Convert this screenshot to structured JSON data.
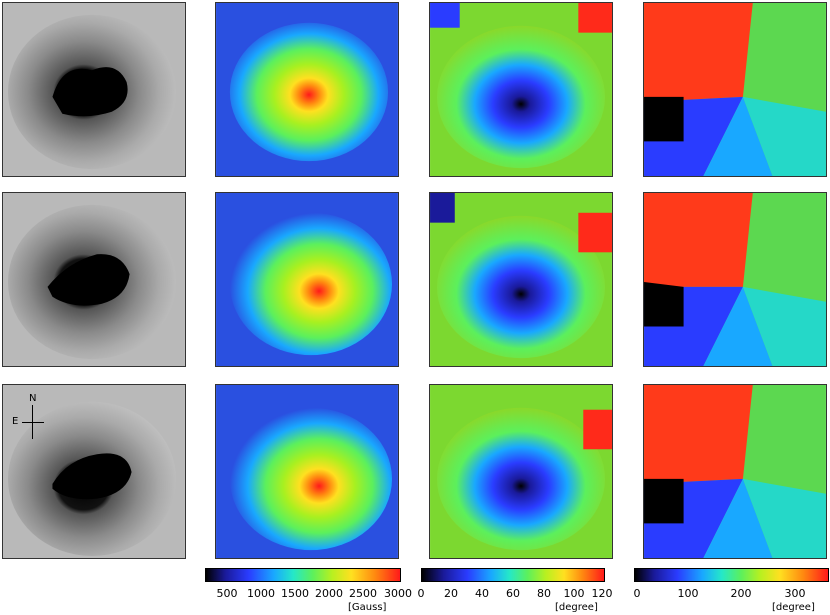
{
  "compass": {
    "north": "N",
    "east": "E"
  },
  "colorbars": [
    {
      "name": "field-strength",
      "ticks": [
        "500",
        "1000",
        "1500",
        "2000",
        "2500",
        "3000"
      ],
      "unit": "[Gauss]"
    },
    {
      "name": "inclination",
      "ticks": [
        "0",
        "20",
        "40",
        "60",
        "80",
        "100",
        "120"
      ],
      "unit": "[degree]"
    },
    {
      "name": "azimuth",
      "ticks": [
        "0",
        "100",
        "200",
        "300"
      ],
      "unit": "[degree]"
    }
  ],
  "panel_types": [
    "continuum-intensity",
    "field-strength",
    "inclination",
    "azimuth"
  ],
  "rows": 3
}
